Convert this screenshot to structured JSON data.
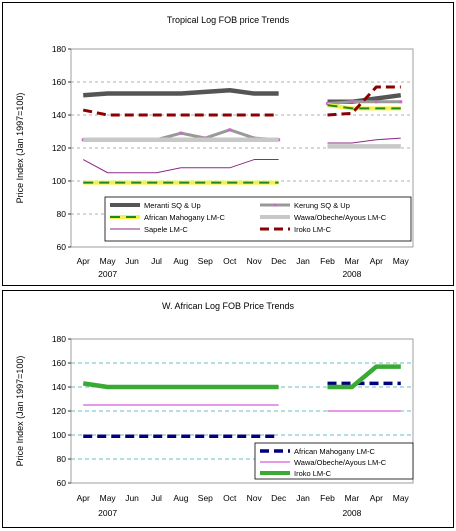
{
  "chart_data": [
    {
      "type": "line",
      "title": "Tropical Log FOB price Trends",
      "ylabel": "Price Index (Jan 1997=100)",
      "ylim": [
        60,
        180
      ],
      "yticks": [
        "60",
        "80",
        "100",
        "120",
        "140",
        "160",
        "180"
      ],
      "categories": [
        "Apr",
        "May",
        "Jun",
        "Jul",
        "Aug",
        "Sep",
        "Oct",
        "Nov",
        "Dec",
        "Jan",
        "Feb",
        "Mar",
        "Apr",
        "May"
      ],
      "year_labels": [
        "2007",
        "2008"
      ],
      "grid": true,
      "legend": "bottom-inside",
      "series": [
        {
          "name": "Meranti SQ & Up",
          "color": "#555555",
          "style": "thick",
          "values": [
            152,
            153,
            153,
            153,
            153,
            154,
            155,
            153,
            153,
            null,
            148,
            148,
            150,
            152
          ]
        },
        {
          "name": "Kerung SQ & Up",
          "color": "#999999",
          "marker": "#cc66cc",
          "style": "medium",
          "values": [
            125,
            125,
            125,
            125,
            129,
            126,
            131,
            126,
            125,
            null,
            147,
            148,
            148,
            148
          ]
        },
        {
          "name": "African Mahogany LM-C",
          "color": "#1a8a1a",
          "style": "dash-yellow",
          "values": [
            99,
            99,
            99,
            99,
            99,
            99,
            99,
            99,
            99,
            null,
            146,
            144,
            144,
            144
          ]
        },
        {
          "name": "Wawa/Obeche/Ayous LM-C",
          "color": "#c8c8c8",
          "style": "thick",
          "values": [
            125,
            125,
            125,
            125,
            125,
            125,
            125,
            125,
            125,
            null,
            121,
            121,
            121,
            121
          ]
        },
        {
          "name": "Sapele LM-C",
          "color": "#8b2a8b",
          "style": "thin",
          "values": [
            113,
            105,
            105,
            105,
            108,
            108,
            108,
            113,
            113,
            null,
            123,
            123,
            125,
            126
          ]
        },
        {
          "name": "Iroko LM-C",
          "color": "#8b0000",
          "style": "dashed",
          "values": [
            143,
            140,
            140,
            140,
            140,
            140,
            140,
            140,
            140,
            null,
            140,
            141,
            157,
            157
          ]
        }
      ]
    },
    {
      "type": "line",
      "title": "W. African Log FOB Price Trends",
      "ylabel": "Price Index (Jan 1997=100)",
      "ylim": [
        60,
        180
      ],
      "yticks": [
        "60",
        "80",
        "100",
        "120",
        "140",
        "160",
        "180"
      ],
      "categories": [
        "Apr",
        "May",
        "Jun",
        "Jul",
        "Aug",
        "Sep",
        "Oct",
        "Nov",
        "Dec",
        "Jan",
        "Feb",
        "Mar",
        "Apr",
        "May"
      ],
      "year_labels": [
        "2007",
        "2008"
      ],
      "grid": true,
      "legend": "bottom-right-inside",
      "series": [
        {
          "name": "African Mahogany LM-C",
          "color": "#000080",
          "style": "dashed",
          "values": [
            99,
            99,
            99,
            99,
            99,
            99,
            99,
            99,
            99,
            null,
            143,
            143,
            143,
            143
          ]
        },
        {
          "name": "Wawa/Obeche/Ayous LM-C",
          "color": "#cc33cc",
          "style": "thin",
          "values": [
            125,
            125,
            125,
            125,
            125,
            125,
            125,
            125,
            125,
            null,
            120,
            120,
            120,
            120
          ]
        },
        {
          "name": "Iroko LM-C",
          "color": "#3aaa35",
          "style": "thick",
          "values": [
            143,
            140,
            140,
            140,
            140,
            140,
            140,
            140,
            140,
            null,
            140,
            140,
            157,
            157
          ]
        }
      ]
    }
  ]
}
